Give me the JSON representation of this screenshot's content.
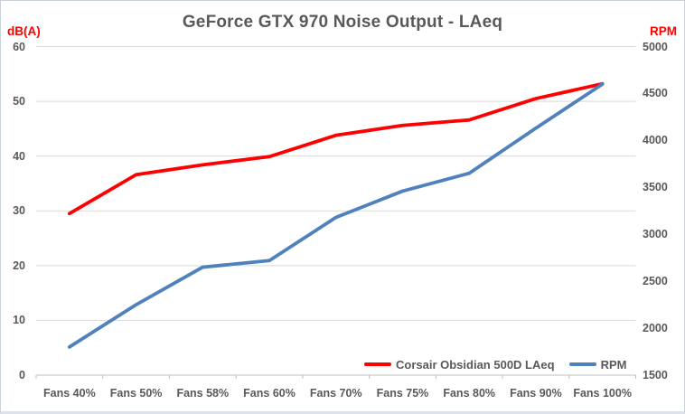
{
  "style": {
    "text_color": "#595959",
    "axis_label_color": "#FF0000",
    "grid_color": "#D9D9D9",
    "axis_line_color": "#BFBFBF",
    "background": "#FFFFFF"
  },
  "chart_data": {
    "type": "line",
    "title": "GeForce GTX 970 Noise Output - LAeq",
    "categories": [
      "Fans 40%",
      "Fans 50%",
      "Fans 58%",
      "Fans 60%",
      "Fans 70%",
      "Fans 75%",
      "Fans 80%",
      "Fans 90%",
      "Fans 100%"
    ],
    "series": [
      {
        "name": "Corsair Obsidian 500D LAeq",
        "axis": "left",
        "color": "#FF0000",
        "values": [
          29.5,
          36.6,
          38.4,
          39.9,
          43.8,
          45.6,
          46.6,
          50.5,
          53.2
        ]
      },
      {
        "name": "RPM",
        "axis": "right",
        "color": "#4F81BD",
        "values": [
          1800,
          2250,
          2650,
          2720,
          3180,
          3460,
          3650,
          4130,
          4600
        ]
      }
    ],
    "left_axis": {
      "label": "dB(A)",
      "ticks": [
        60,
        50,
        40,
        30,
        20,
        10,
        0
      ],
      "range": [
        0,
        60
      ]
    },
    "right_axis": {
      "label": "RPM",
      "ticks": [
        5000,
        4500,
        4000,
        3500,
        3000,
        2500,
        2000,
        1500
      ],
      "range": [
        1500,
        5000
      ]
    },
    "grid": true,
    "legend_position": "inside-bottom-right"
  }
}
